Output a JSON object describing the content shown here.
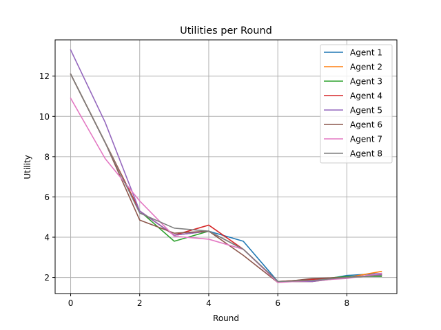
{
  "chart_data": {
    "type": "line",
    "title": "Utilities per Round",
    "xlabel": "Round",
    "ylabel": "Utility",
    "xlim": [
      -0.45,
      9.45
    ],
    "ylim": [
      1.2,
      13.8
    ],
    "xticks": [
      0,
      2,
      4,
      6,
      8
    ],
    "yticks": [
      2,
      4,
      6,
      8,
      10,
      12
    ],
    "grid": true,
    "legend_position": "top-right",
    "x": [
      0,
      1,
      2,
      3,
      4,
      5,
      6,
      7,
      8,
      9
    ],
    "series": [
      {
        "name": "Agent 1",
        "color": "#1f77b4",
        "values": [
          12.1,
          8.7,
          5.3,
          4.1,
          4.3,
          3.8,
          1.8,
          1.8,
          2.1,
          2.2
        ]
      },
      {
        "name": "Agent 2",
        "color": "#ff7f0e",
        "values": [
          12.1,
          8.7,
          5.3,
          4.1,
          4.3,
          3.4,
          1.8,
          1.8,
          2.0,
          2.3
        ]
      },
      {
        "name": "Agent 3",
        "color": "#2ca02c",
        "values": [
          12.1,
          8.7,
          5.3,
          3.8,
          4.3,
          3.4,
          1.8,
          1.9,
          2.05,
          2.05
        ]
      },
      {
        "name": "Agent 4",
        "color": "#d62728",
        "values": [
          12.1,
          8.7,
          5.3,
          4.1,
          4.6,
          3.4,
          1.8,
          1.9,
          2.0,
          2.15
        ]
      },
      {
        "name": "Agent 5",
        "color": "#9467bd",
        "values": [
          13.3,
          9.7,
          5.3,
          4.1,
          4.3,
          3.4,
          1.8,
          1.8,
          2.0,
          2.15
        ]
      },
      {
        "name": "Agent 6",
        "color": "#8c564b",
        "values": [
          12.1,
          8.7,
          4.85,
          4.2,
          4.3,
          3.1,
          1.75,
          1.95,
          2.0,
          2.1
        ]
      },
      {
        "name": "Agent 7",
        "color": "#e377c2",
        "values": [
          10.9,
          7.9,
          5.8,
          4.05,
          3.9,
          3.4,
          1.75,
          1.85,
          1.95,
          2.2
        ]
      },
      {
        "name": "Agent 8",
        "color": "#7f7f7f",
        "values": [
          12.1,
          8.7,
          5.2,
          4.45,
          4.3,
          3.4,
          1.8,
          1.85,
          2.0,
          2.1
        ]
      }
    ]
  }
}
